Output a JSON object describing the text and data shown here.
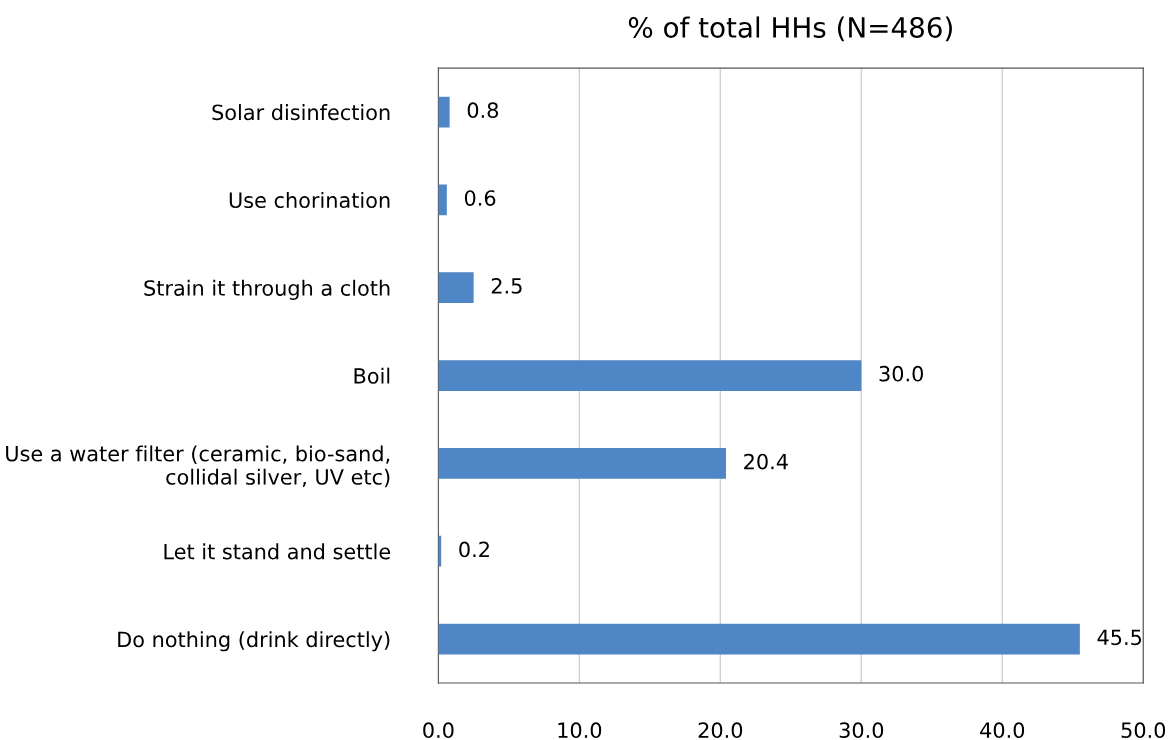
{
  "chart_data": {
    "type": "bar",
    "orientation": "horizontal",
    "title": "% of total HHs (N=486)",
    "categories": [
      "Solar disinfection",
      "Use chorination",
      "Strain it through a cloth",
      "Boil",
      "Use a water filter (ceramic, bio-sand,\ncollidal silver, UV etc)",
      "Let it stand and settle",
      "Do nothing (drink directly)"
    ],
    "values": [
      0.8,
      0.6,
      2.5,
      30.0,
      20.4,
      0.2,
      45.5
    ],
    "value_labels": [
      "0.8",
      "0.6",
      "2.5",
      "30.0",
      "20.4",
      "0.2",
      "45.5"
    ],
    "color": "#4f86c6",
    "xlim": [
      0,
      50
    ],
    "xticks": [
      {
        "value": 0,
        "label": "0.0"
      },
      {
        "value": 10,
        "label": "10.0"
      },
      {
        "value": 20,
        "label": "20.0"
      },
      {
        "value": 30,
        "label": "30.0"
      },
      {
        "value": 40,
        "label": "40.0"
      },
      {
        "value": 50,
        "label": "50.0"
      }
    ],
    "grid": "x",
    "legend": false
  }
}
